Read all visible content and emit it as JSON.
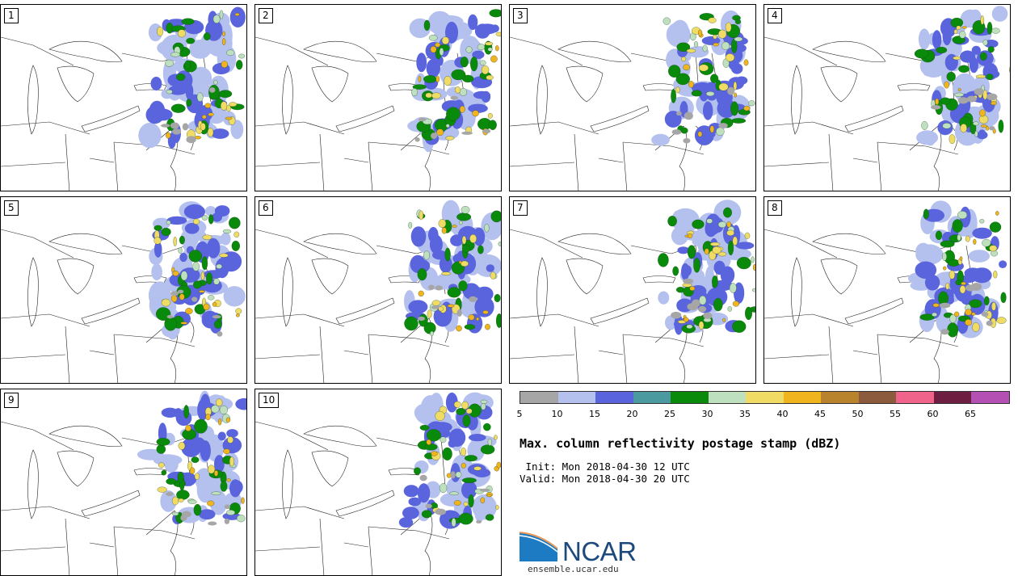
{
  "panels": [
    "1",
    "2",
    "3",
    "4",
    "5",
    "6",
    "7",
    "8",
    "9",
    "10"
  ],
  "title": "Max. column reflectivity postage stamp (dBZ)",
  "init_line": " Init: Mon 2018-04-30 12 UTC",
  "valid_line": "Valid: Mon 2018-04-30 20 UTC",
  "colorbar": {
    "ticks": [
      "5",
      "10",
      "15",
      "20",
      "25",
      "30",
      "35",
      "40",
      "45",
      "50",
      "55",
      "60",
      "65"
    ],
    "colors": [
      "#a6a6a6",
      "#b4c0ee",
      "#5a64dc",
      "#4b9aa0",
      "#0a8a0a",
      "#bee0be",
      "#f0dc64",
      "#f0b41e",
      "#b9822d",
      "#8c5a3c",
      "#f0648c",
      "#6e1e41",
      "#b450b4"
    ]
  },
  "logo": {
    "text": "NCAR",
    "url": "ensemble.ucar.edu"
  }
}
